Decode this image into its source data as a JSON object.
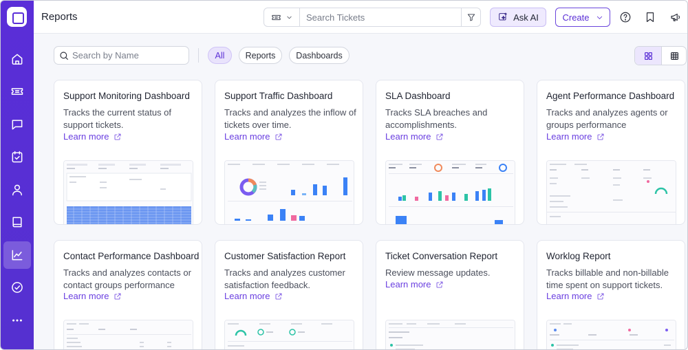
{
  "app": {
    "page_title": "Reports",
    "sidebar_items": [
      {
        "name": "home",
        "icon": "home-icon",
        "active": false
      },
      {
        "name": "tickets",
        "icon": "ticket-icon",
        "active": false
      },
      {
        "name": "conversations",
        "icon": "chat-icon",
        "active": false
      },
      {
        "name": "tasks",
        "icon": "calendar-check-icon",
        "active": false
      },
      {
        "name": "contacts",
        "icon": "user-icon",
        "active": false
      },
      {
        "name": "knowledge-base",
        "icon": "book-icon",
        "active": false
      },
      {
        "name": "reports",
        "icon": "chart-line-icon",
        "active": true
      },
      {
        "name": "approvals",
        "icon": "check-circle-icon",
        "active": false
      },
      {
        "name": "more",
        "icon": "more-dots-icon",
        "active": false
      }
    ]
  },
  "header": {
    "search_placeholder": "Search Tickets",
    "ask_ai_label": "Ask AI",
    "create_label": "Create",
    "accent_color": "#5b2fd6"
  },
  "filters": {
    "name_search_placeholder": "Search by Name",
    "chips": [
      {
        "label": "All",
        "active": true
      },
      {
        "label": "Reports",
        "active": false
      },
      {
        "label": "Dashboards",
        "active": false
      }
    ],
    "view_mode": "grid"
  },
  "cards": [
    {
      "title": "Support Monitoring Dashboard",
      "description": "Tracks the current status of support tickets.",
      "link": "Learn more"
    },
    {
      "title": "Support Traffic Dashboard",
      "description": "Tracks and analyzes the inflow of tickets over time.",
      "link": "Learn more"
    },
    {
      "title": "SLA Dashboard",
      "description": "Tracks SLA breaches and accomplishments.",
      "link": "Learn more"
    },
    {
      "title": "Agent Performance Dashboard",
      "description": "Tracks and analyzes agents or groups performance",
      "link": "Learn more"
    },
    {
      "title": "Contact Performance Dashboard",
      "description": "Tracks and analyzes contacts or contact groups performance",
      "link": "Learn more"
    },
    {
      "title": "Customer Satisfaction Report",
      "description": "Tracks and analyzes customer satisfaction feedback.",
      "link": "Learn more"
    },
    {
      "title": "Ticket Conversation Report",
      "description": "Review message updates.",
      "link": "Learn more"
    },
    {
      "title": "Worklog Report",
      "description": "Tracks billable and non-billable time spent on support tickets.",
      "link": "Learn more"
    }
  ]
}
